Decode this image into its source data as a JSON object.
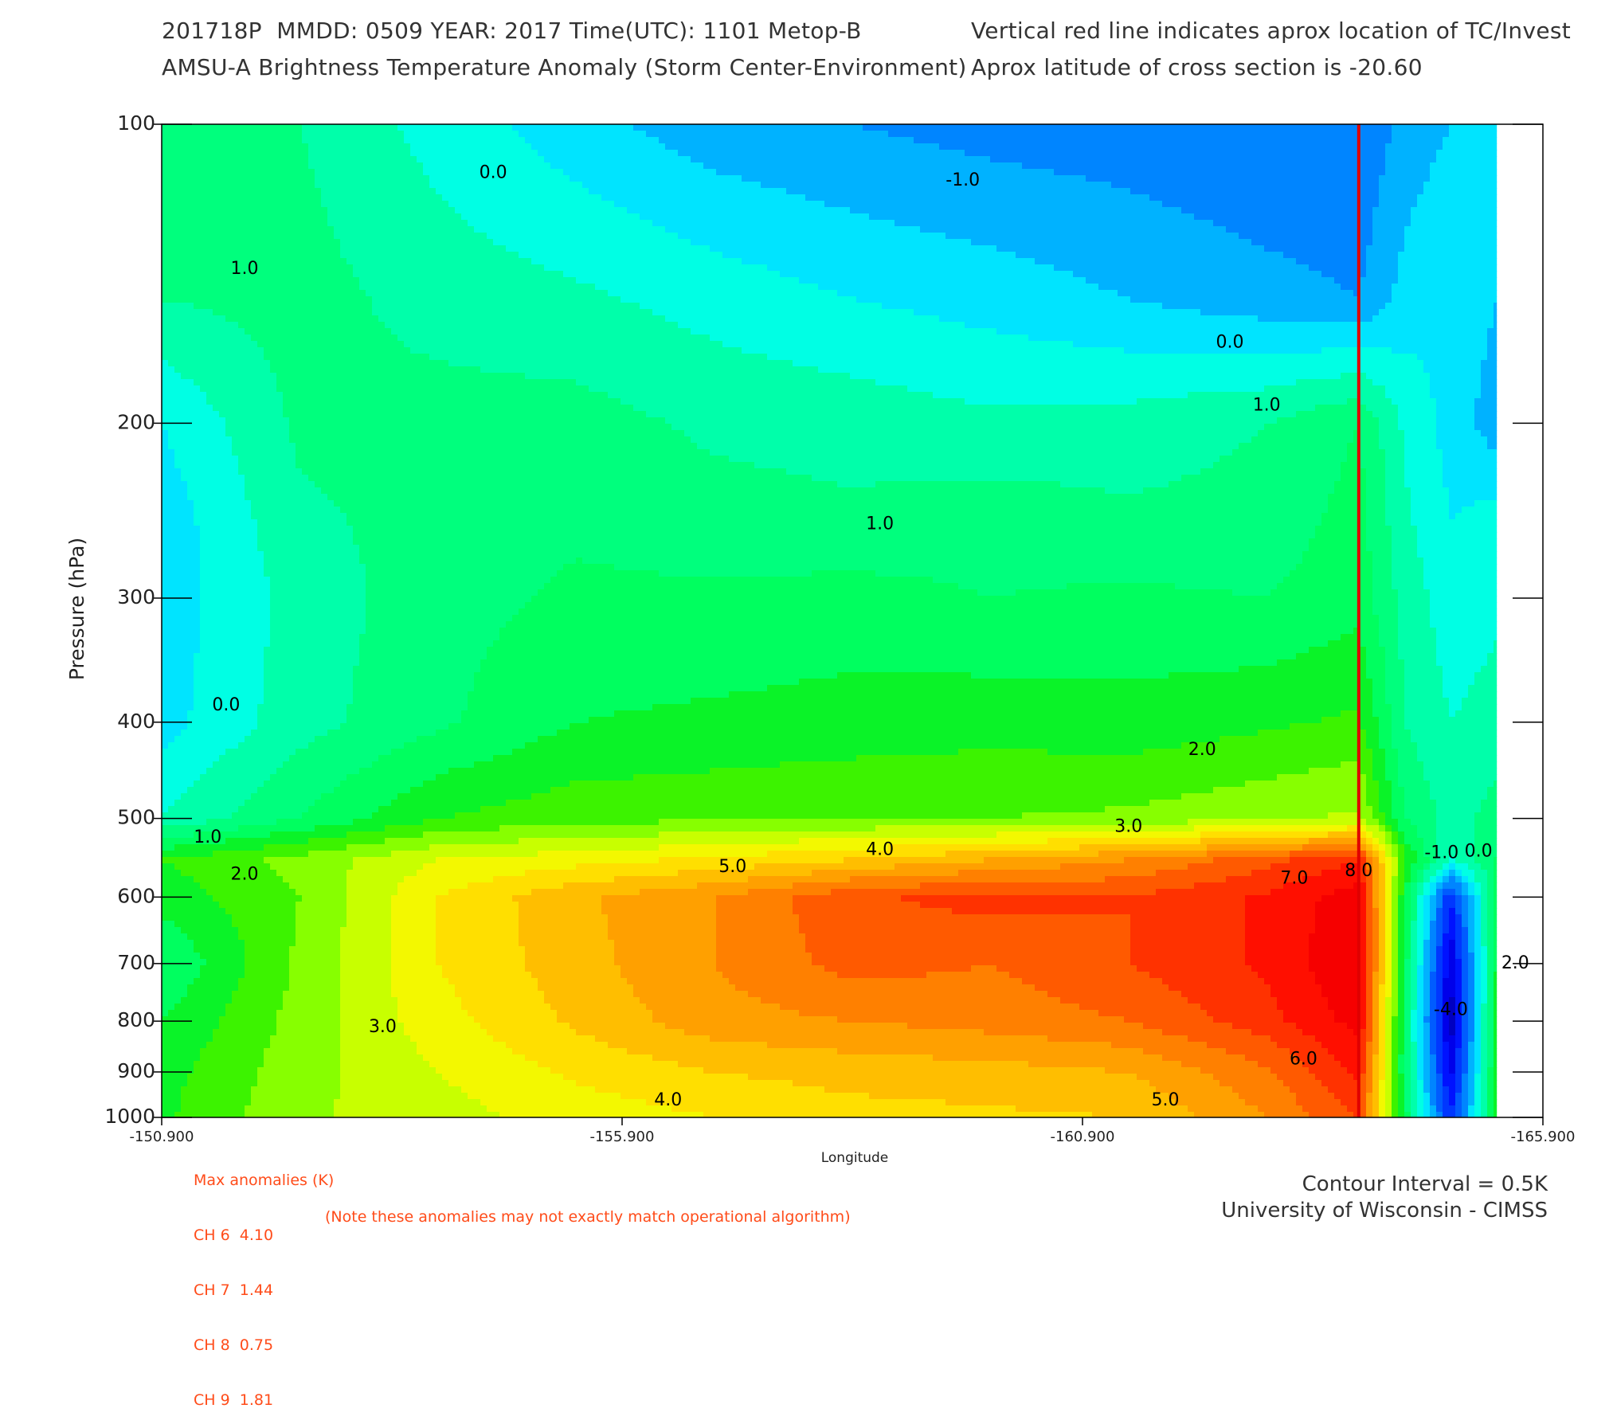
{
  "header": {
    "line1_left": "201718P  MMDD: 0509 YEAR: 2017 Time(UTC): 1101 Metop-B",
    "line1_right": "Vertical red line indicates aprox location of TC/Invest",
    "line2_left": "AMSU-A Brightness Temperature Anomaly (Storm Center-Environment)",
    "line2_right": "Aprox latitude of cross section is -20.60"
  },
  "max_anomalies": {
    "title": "Max anomalies (K)",
    "channels": [
      {
        "label": "CH 6",
        "value": "4.10"
      },
      {
        "label": "CH 7",
        "value": "1.44"
      },
      {
        "label": "CH 8",
        "value": "0.75"
      },
      {
        "label": "CH 9",
        "value": "1.81"
      }
    ],
    "note": "(Note these anomalies may not exactly match operational algorithm)"
  },
  "footer": {
    "contour_interval": "Contour Interval = 0.5K",
    "credit": "University of Wisconsin - CIMSS"
  },
  "colors": {
    "storm_line": "#e00000",
    "contour_line": "#000000",
    "annotation": "#ff4c1a"
  },
  "chart_data": {
    "type": "heatmap",
    "xlabel": "Longitude",
    "ylabel": "Pressure (hPa)",
    "x_ticks": [
      "-150.900",
      "-155.900",
      "-160.900",
      "-165.900"
    ],
    "y_ticks": [
      "100",
      "200",
      "300",
      "400",
      "500",
      "600",
      "700",
      "800",
      "900",
      "1000"
    ],
    "xlim": [
      -150.9,
      -165.9
    ],
    "ylim": [
      100,
      1000
    ],
    "y_scale": "log (pressure)",
    "storm_longitude": -163.9,
    "data_extent_longitude": -165.4,
    "contour_interval": 0.5,
    "longitudes": [
      -150.9,
      -152.4,
      -153.9,
      -155.4,
      -156.9,
      -158.4,
      -159.9,
      -161.4,
      -162.9,
      -163.9,
      -164.4,
      -164.9,
      -165.4
    ],
    "pressures": [
      100,
      150,
      200,
      250,
      300,
      400,
      500,
      550,
      600,
      700,
      800,
      900,
      1000
    ],
    "values": [
      [
        1.5,
        1.0,
        0.3,
        -0.3,
        -0.8,
        -1.0,
        -1.2,
        -1.3,
        -1.5,
        -1.5,
        -0.8,
        -0.5,
        -0.3
      ],
      [
        1.0,
        1.2,
        0.8,
        0.6,
        0.3,
        0.0,
        -0.2,
        -0.5,
        -0.8,
        -1.0,
        -0.3,
        0.0,
        -0.5
      ],
      [
        0.0,
        1.1,
        1.2,
        1.2,
        0.9,
        0.8,
        0.6,
        0.7,
        1.0,
        1.5,
        0.4,
        -0.2,
        -0.8
      ],
      [
        -0.3,
        0.9,
        1.2,
        1.4,
        1.2,
        1.1,
        1.3,
        1.1,
        1.2,
        1.7,
        0.6,
        0.0,
        0.2
      ],
      [
        -0.3,
        0.7,
        1.3,
        1.6,
        1.6,
        1.7,
        1.5,
        1.6,
        1.5,
        1.8,
        0.8,
        0.2,
        0.4
      ],
      [
        -0.2,
        0.8,
        1.4,
        2.0,
        2.1,
        2.2,
        2.3,
        2.2,
        2.4,
        2.6,
        1.0,
        0.5,
        0.7
      ],
      [
        0.5,
        1.5,
        2.5,
        2.8,
        2.9,
        3.0,
        3.0,
        3.1,
        3.4,
        3.6,
        1.5,
        0.8,
        1.2
      ],
      [
        2.5,
        3.2,
        4.0,
        4.3,
        4.6,
        5.0,
        5.5,
        6.0,
        6.8,
        7.5,
        2.5,
        0.5,
        1.5
      ],
      [
        2.2,
        3.0,
        4.5,
        5.4,
        6.0,
        6.9,
        7.2,
        7.0,
        7.6,
        8.3,
        2.0,
        -2.5,
        1.8
      ],
      [
        1.5,
        3.1,
        4.5,
        5.3,
        6.0,
        6.7,
        6.5,
        7.0,
        7.6,
        8.5,
        1.8,
        -3.5,
        2.0
      ],
      [
        2.0,
        3.2,
        4.3,
        5.1,
        5.8,
        6.0,
        6.2,
        6.5,
        7.3,
        8.2,
        1.5,
        -3.8,
        2.2
      ],
      [
        2.3,
        3.3,
        4.0,
        4.6,
        5.0,
        5.2,
        5.3,
        5.5,
        6.4,
        7.6,
        1.5,
        -3.2,
        2.3
      ],
      [
        2.4,
        3.4,
        3.8,
        4.2,
        4.5,
        4.8,
        4.9,
        5.0,
        6.0,
        7.0,
        1.8,
        -2.5,
        2.3
      ]
    ],
    "contour_labels": [
      {
        "text": "1.0",
        "lon": -151.8,
        "p": 140
      },
      {
        "text": "0.0",
        "lon": -154.5,
        "p": 112
      },
      {
        "text": "-1.0",
        "lon": -159.6,
        "p": 114
      },
      {
        "text": "0.0",
        "lon": -162.5,
        "p": 166
      },
      {
        "text": "1.0",
        "lon": -162.9,
        "p": 192
      },
      {
        "text": "1.0",
        "lon": -158.7,
        "p": 253
      },
      {
        "text": "0.0",
        "lon": -151.6,
        "p": 385
      },
      {
        "text": "2.0",
        "lon": -162.2,
        "p": 427
      },
      {
        "text": "3.0",
        "lon": -161.4,
        "p": 510
      },
      {
        "text": "1.0",
        "lon": -151.4,
        "p": 523
      },
      {
        "text": "4.0",
        "lon": -158.7,
        "p": 538
      },
      {
        "text": "2.0",
        "lon": -151.8,
        "p": 570
      },
      {
        "text": "5.0",
        "lon": -157.1,
        "p": 560
      },
      {
        "text": "7.0",
        "lon": -163.2,
        "p": 575
      },
      {
        "text": "8.0",
        "lon": -163.9,
        "p": 565
      },
      {
        "text": "-1.0",
        "lon": -164.8,
        "p": 542
      },
      {
        "text": "0.0",
        "lon": -165.2,
        "p": 540
      },
      {
        "text": "3.0",
        "lon": -153.3,
        "p": 812
      },
      {
        "text": "6.0",
        "lon": -163.3,
        "p": 875
      },
      {
        "text": "4.0",
        "lon": -156.4,
        "p": 962
      },
      {
        "text": "5.0",
        "lon": -161.8,
        "p": 962
      },
      {
        "text": "-4.0",
        "lon": -164.9,
        "p": 780
      },
      {
        "text": "2.0",
        "lon": -165.6,
        "p": 700
      }
    ]
  }
}
